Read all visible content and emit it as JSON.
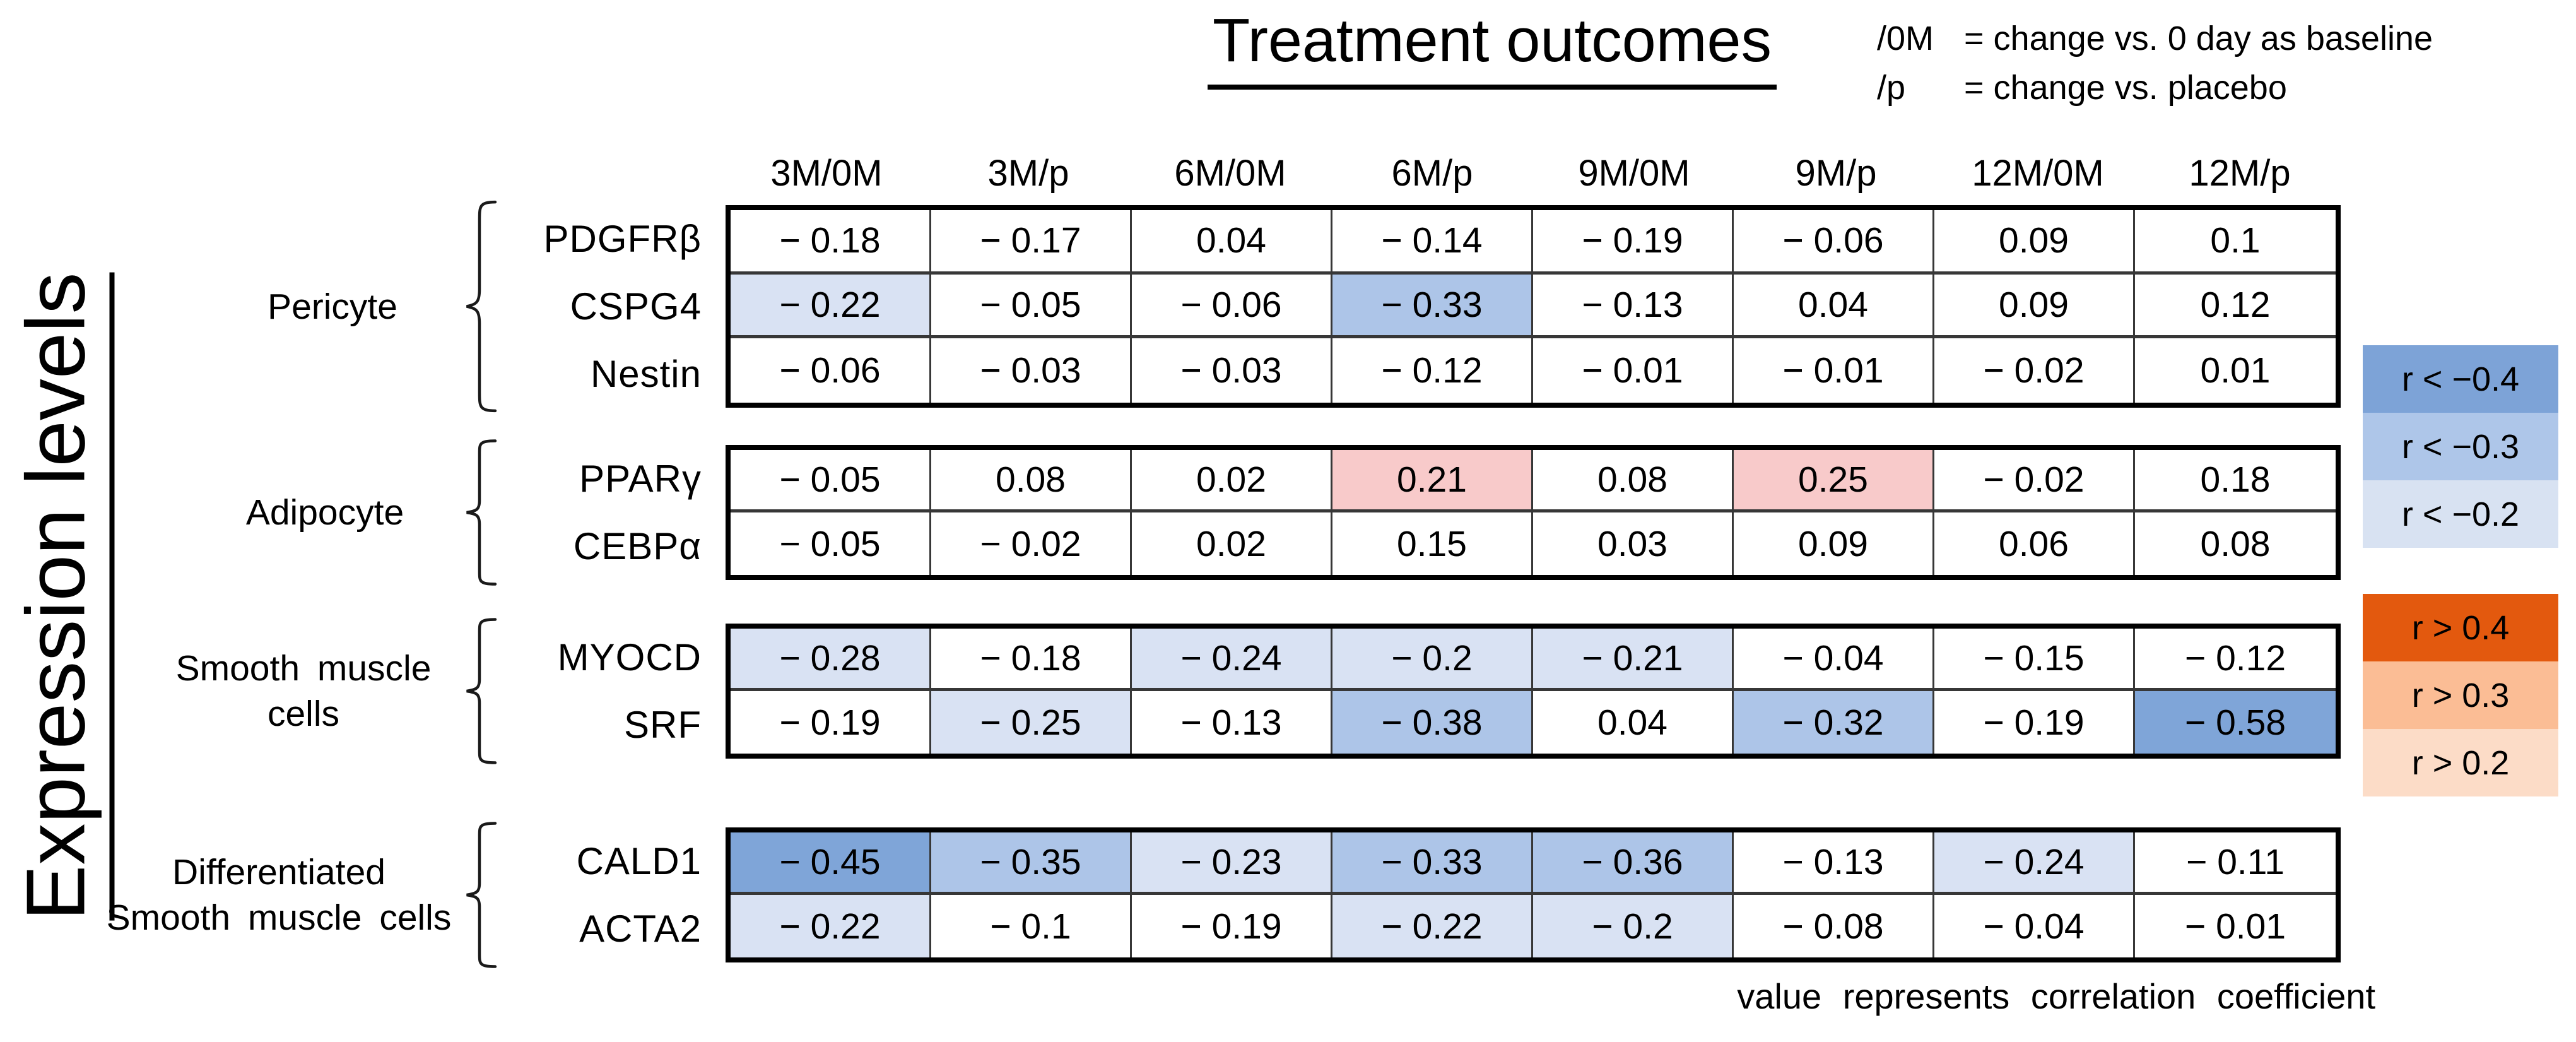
{
  "title": "Treatment outcomes",
  "notes": [
    {
      "prefix": "/0M",
      "text": "= change vs. 0 day as baseline"
    },
    {
      "prefix": "/p",
      "text": "= change vs. placebo"
    }
  ],
  "y_axis_label": "Expression levels",
  "caption": "value represents correlation coefficient",
  "palette": {
    "white": "#FFFFFF",
    "light_blue": "#D9E2F3",
    "mid_blue": "#ADC5E8",
    "dark_blue": "#7FA5D8",
    "pink": "#F8CACA"
  },
  "legend_negative": [
    {
      "label": "r < −0.4",
      "color": "#7DA3D7"
    },
    {
      "label": "r < −0.3",
      "color": "#AEC6E9"
    },
    {
      "label": "r < −0.2",
      "color": "#D8E2F2"
    }
  ],
  "legend_positive": [
    {
      "label": "r > 0.4",
      "color": "#E3590E"
    },
    {
      "label": "r > 0.3",
      "color": "#FBBD95"
    },
    {
      "label": "r > 0.2",
      "color": "#FCDCC7"
    }
  ],
  "chart_data": {
    "type": "heatmap",
    "columns": [
      "3M/0M",
      "3M/p",
      "6M/0M",
      "6M/p",
      "9M/0M",
      "9M/p",
      "12M/0M",
      "12M/p"
    ],
    "groups": [
      {
        "name": "Pericyte",
        "rows": [
          {
            "gene": "PDGFRβ",
            "values": [
              -0.18,
              -0.17,
              0.04,
              -0.14,
              -0.19,
              -0.06,
              0.09,
              0.1
            ],
            "shades": [
              "white",
              "white",
              "white",
              "white",
              "white",
              "white",
              "white",
              "white"
            ]
          },
          {
            "gene": "CSPG4",
            "values": [
              -0.22,
              -0.05,
              -0.06,
              -0.33,
              -0.13,
              0.04,
              0.09,
              0.12
            ],
            "shades": [
              "light_blue",
              "white",
              "white",
              "mid_blue",
              "white",
              "white",
              "white",
              "white"
            ]
          },
          {
            "gene": "Nestin",
            "values": [
              -0.06,
              -0.03,
              -0.03,
              -0.12,
              -0.01,
              -0.01,
              -0.02,
              0.01
            ],
            "shades": [
              "white",
              "white",
              "white",
              "white",
              "white",
              "white",
              "white",
              "white"
            ]
          }
        ]
      },
      {
        "name": "Adipocyte",
        "rows": [
          {
            "gene": "PPARγ",
            "values": [
              -0.05,
              0.08,
              0.02,
              0.21,
              0.08,
              0.25,
              -0.02,
              0.18
            ],
            "shades": [
              "white",
              "white",
              "white",
              "pink",
              "white",
              "pink",
              "white",
              "white"
            ]
          },
          {
            "gene": "CEBPα",
            "values": [
              -0.05,
              -0.02,
              0.02,
              0.15,
              0.03,
              0.09,
              0.06,
              0.08
            ],
            "shades": [
              "white",
              "white",
              "white",
              "white",
              "white",
              "white",
              "white",
              "white"
            ]
          }
        ]
      },
      {
        "name": "Smooth muscle\ncells",
        "rows": [
          {
            "gene": "MYOCD",
            "values": [
              -0.28,
              -0.18,
              -0.24,
              -0.2,
              -0.21,
              -0.04,
              -0.15,
              -0.12
            ],
            "shades": [
              "light_blue",
              "white",
              "light_blue",
              "light_blue",
              "light_blue",
              "white",
              "white",
              "white"
            ]
          },
          {
            "gene": "SRF",
            "values": [
              -0.19,
              -0.25,
              -0.13,
              -0.38,
              0.04,
              -0.32,
              -0.19,
              -0.58
            ],
            "shades": [
              "white",
              "light_blue",
              "white",
              "mid_blue",
              "white",
              "mid_blue",
              "white",
              "dark_blue"
            ]
          }
        ]
      },
      {
        "name": "Differentiated\nSmooth muscle cells",
        "rows": [
          {
            "gene": "CALD1",
            "values": [
              -0.45,
              -0.35,
              -0.23,
              -0.33,
              -0.36,
              -0.13,
              -0.24,
              -0.11
            ],
            "shades": [
              "dark_blue",
              "mid_blue",
              "light_blue",
              "mid_blue",
              "mid_blue",
              "white",
              "light_blue",
              "white"
            ]
          },
          {
            "gene": "ACTA2",
            "values": [
              -0.22,
              -0.1,
              -0.19,
              -0.22,
              -0.2,
              -0.08,
              -0.04,
              -0.01
            ],
            "shades": [
              "light_blue",
              "white",
              "white",
              "light_blue",
              "light_blue",
              "white",
              "white",
              "white"
            ]
          }
        ]
      }
    ]
  }
}
